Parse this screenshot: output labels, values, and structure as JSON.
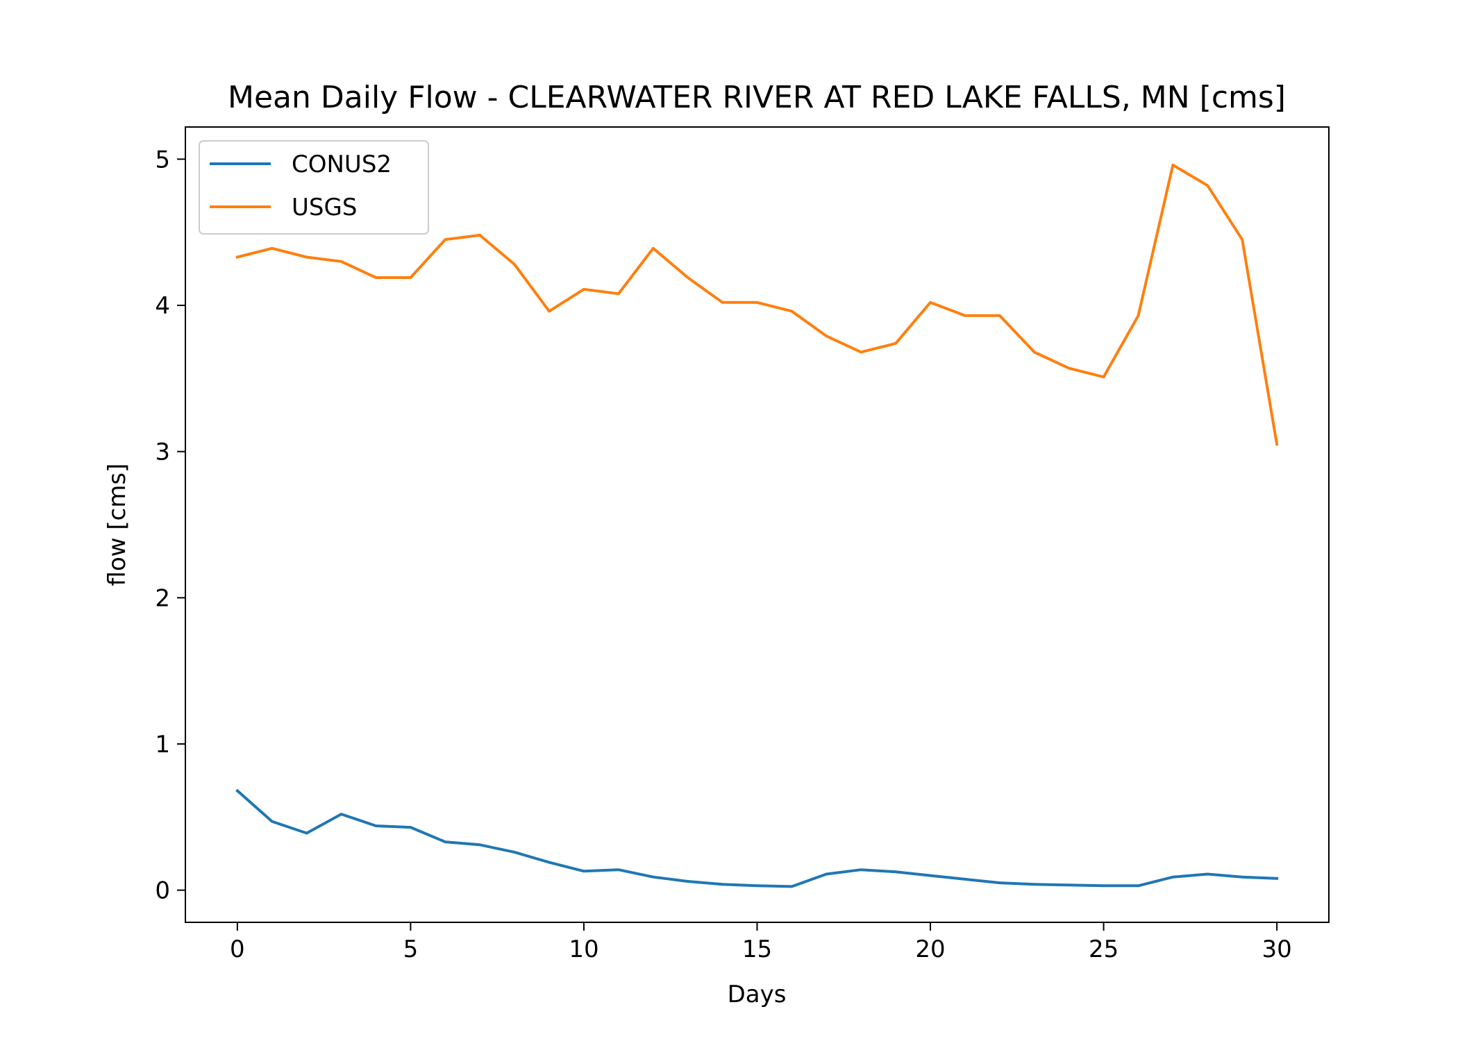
{
  "chart_data": {
    "type": "line",
    "title": "Mean Daily Flow - CLEARWATER RIVER AT RED LAKE FALLS, MN [cms]",
    "xlabel": "Days",
    "ylabel": "flow [cms]",
    "xlim": [
      -1.5,
      31.5
    ],
    "ylim": [
      -0.22,
      5.22
    ],
    "xticks": [
      0,
      5,
      10,
      15,
      20,
      25,
      30
    ],
    "yticks": [
      0,
      1,
      2,
      3,
      4,
      5
    ],
    "legend_position": "upper-left",
    "grid": false,
    "x": [
      0,
      1,
      2,
      3,
      4,
      5,
      6,
      7,
      8,
      9,
      10,
      11,
      12,
      13,
      14,
      15,
      16,
      17,
      18,
      19,
      20,
      21,
      22,
      23,
      24,
      25,
      26,
      27,
      28,
      29,
      30
    ],
    "series": [
      {
        "name": "CONUS2",
        "color": "#1f77b4",
        "values": [
          0.68,
          0.47,
          0.39,
          0.52,
          0.44,
          0.43,
          0.33,
          0.31,
          0.26,
          0.19,
          0.13,
          0.14,
          0.09,
          0.06,
          0.04,
          0.03,
          0.025,
          0.11,
          0.14,
          0.125,
          0.1,
          0.075,
          0.05,
          0.04,
          0.035,
          0.03,
          0.03,
          0.09,
          0.11,
          0.09,
          0.08
        ]
      },
      {
        "name": "USGS",
        "color": "#ff7f0e",
        "values": [
          4.33,
          4.39,
          4.33,
          4.3,
          4.19,
          4.19,
          4.45,
          4.48,
          4.28,
          3.96,
          4.11,
          4.08,
          4.39,
          4.19,
          4.02,
          4.02,
          3.96,
          3.79,
          3.68,
          3.74,
          4.02,
          3.93,
          3.93,
          3.68,
          3.57,
          3.51,
          3.93,
          4.96,
          4.82,
          4.45,
          3.05
        ]
      }
    ]
  }
}
